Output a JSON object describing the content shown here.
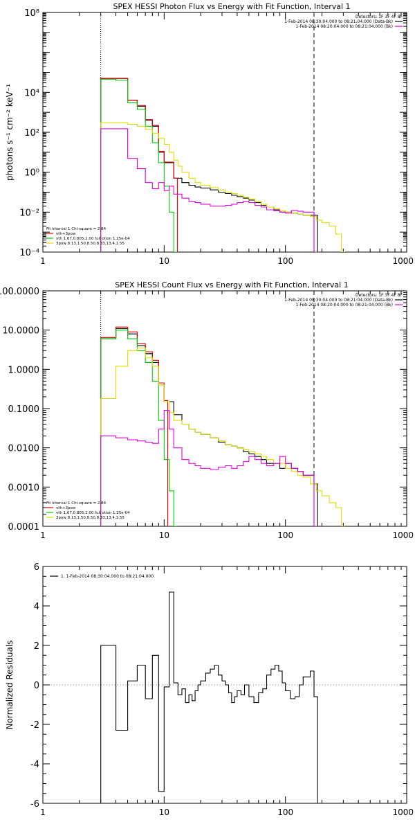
{
  "chart_data": [
    {
      "type": "line",
      "title": "SPEX HESSI Photon Flux vs Energy with Fit Function, Interval 1",
      "ylabel": "photons s⁻¹ cm⁻² keV⁻¹",
      "x_scale": "log",
      "y_scale": "log",
      "xlim": [
        1,
        1000
      ],
      "ylim": [
        0.0001,
        100000000
      ],
      "x_ticks": [
        {
          "value": 1,
          "label": "1"
        },
        {
          "value": 10,
          "label": "10"
        },
        {
          "value": 100,
          "label": "100"
        },
        {
          "value": 1000,
          "label": "1000"
        }
      ],
      "y_ticks": [
        {
          "value": 0.0001,
          "label": "10⁻⁴"
        },
        {
          "value": 0.01,
          "label": "10⁻²"
        },
        {
          "value": 1,
          "label": "10⁰"
        },
        {
          "value": 100,
          "label": "10²"
        },
        {
          "value": 10000,
          "label": "10⁴"
        },
        {
          "value": 100000000,
          "label": "10⁸"
        }
      ],
      "legend_top": {
        "header": "Detectors: 1F 3F 4F 8F",
        "entries": [
          {
            "label": "1-Feb-2014 08:30:04.000 to 08:21:04.000 (Data-Bk)",
            "color": "#000000"
          },
          {
            "label": "1-Feb-2014 08:20:04.000 to 08:21:04.000 (Bk)",
            "color": "#dd00dd"
          }
        ]
      },
      "legend_bottom": {
        "header": "Fit Interval 1    Chi-square = 2.84",
        "entries": [
          {
            "label": "vth+3pow",
            "color": "#dd0000"
          },
          {
            "label": "vth 1.67,0.805,1.00  full otion 1.25e-04",
            "color": "#00cc00"
          },
          {
            "label": "3pow 8.13,1.50,8.50,8.33,13.4,1.55",
            "color": "#dddd00"
          }
        ]
      },
      "vlines": [
        {
          "x": 3,
          "style": "dotted"
        },
        {
          "x": 172,
          "style": "dashed"
        }
      ],
      "series": [
        {
          "name": "1-Feb-2014 08:30:04.000 to 08:21:04.000 (Data-Bk)",
          "color": "#000000",
          "x": [
            3,
            4,
            5,
            6,
            7,
            8,
            9,
            10,
            12,
            14,
            16,
            18,
            20,
            24,
            28,
            32,
            36,
            40,
            45,
            50,
            56,
            63,
            70,
            80,
            90,
            100,
            112,
            126,
            140,
            172
          ],
          "y": [
            50000,
            50000,
            4000,
            2000,
            400,
            200,
            10,
            3,
            0.5,
            0.3,
            0.22,
            0.18,
            0.16,
            0.13,
            0.1,
            0.085,
            0.07,
            0.06,
            0.05,
            0.04,
            0.03,
            0.022,
            0.018,
            0.013,
            0.01,
            0.01,
            0.009,
            0.008,
            0.007,
            0.007
          ]
        },
        {
          "name": "vth+3pow",
          "color": "#dd0000",
          "x": [
            3,
            4,
            5,
            6,
            7,
            8,
            9,
            10,
            12
          ],
          "y": [
            50000,
            50000,
            4000,
            2200,
            430,
            220,
            11,
            3.2,
            0.5
          ]
        },
        {
          "name": "vth 1.67,0.805,1.00  full otion 1.25e-04",
          "color": "#00cc00",
          "x": [
            3,
            4,
            5,
            6,
            7,
            8,
            9,
            10,
            11,
            12
          ],
          "y": [
            45000,
            40000,
            3000,
            1400,
            200,
            30,
            3,
            0.2,
            0.01,
            0.0001
          ]
        },
        {
          "name": "3pow 8.13,1.50,8.50,8.33,13.4,1.55",
          "color": "#dddd00",
          "x": [
            3,
            4,
            5,
            6,
            7,
            8,
            9,
            10,
            11,
            12,
            13,
            14,
            16,
            18,
            20,
            24,
            28,
            32,
            36,
            40,
            45,
            50,
            56,
            63,
            70,
            80,
            90,
            100,
            112,
            126,
            140,
            160,
            180,
            200,
            230,
            260,
            290
          ],
          "y": [
            300,
            300,
            250,
            200,
            140,
            90,
            50,
            25,
            10,
            4,
            2,
            1,
            0.5,
            0.3,
            0.22,
            0.17,
            0.13,
            0.1,
            0.085,
            0.07,
            0.055,
            0.045,
            0.035,
            0.025,
            0.018,
            0.015,
            0.012,
            0.01,
            0.009,
            0.008,
            0.007,
            0.006,
            0.004,
            0.003,
            0.002,
            0.0008,
            0.0001
          ]
        },
        {
          "name": "1-Feb-2014 08:20:04.000 to 08:21:04.000 (Bk)",
          "color": "#dd00dd",
          "x": [
            3,
            4,
            5,
            6,
            7,
            8,
            9,
            10,
            11,
            12,
            14,
            16,
            18,
            20,
            24,
            28,
            32,
            36,
            40,
            45,
            50,
            56,
            63,
            70,
            80,
            90,
            100,
            112,
            126,
            140,
            172
          ],
          "y": [
            150,
            150,
            5,
            1.5,
            0.3,
            0.15,
            0.3,
            0.12,
            0.2,
            0.08,
            0.05,
            0.035,
            0.03,
            0.025,
            0.02,
            0.02,
            0.022,
            0.025,
            0.03,
            0.035,
            0.03,
            0.022,
            0.018,
            0.013,
            0.012,
            0.01,
            0.009,
            0.012,
            0.011,
            0.01,
            0.0001
          ]
        }
      ]
    },
    {
      "type": "line",
      "title": "SPEX HESSI Count Flux vs Energy with Fit Function, Interval 1",
      "ylabel": "",
      "x_scale": "log",
      "y_scale": "log",
      "xlim": [
        1,
        1000
      ],
      "ylim": [
        0.0001,
        100
      ],
      "x_ticks": [
        {
          "value": 1,
          "label": "1"
        },
        {
          "value": 10,
          "label": "10"
        },
        {
          "value": 100,
          "label": "100"
        },
        {
          "value": 1000,
          "label": "1000"
        }
      ],
      "y_ticks": [
        {
          "value": 0.0001,
          "label": "0.0001"
        },
        {
          "value": 0.001,
          "label": "0.0010"
        },
        {
          "value": 0.01,
          "label": "0.0100"
        },
        {
          "value": 0.1,
          "label": "0.1000"
        },
        {
          "value": 1,
          "label": "1.0000"
        },
        {
          "value": 10,
          "label": "10.0000"
        },
        {
          "value": 100,
          "label": "100.0000"
        }
      ],
      "legend_top": {
        "header": "Detectors: 1F 3F 4F 8F",
        "entries": [
          {
            "label": "1-Feb-2014 08:30:04.000 to 08:21:04.000 (Data-Bk)",
            "color": "#000000"
          },
          {
            "label": "1-Feb-2014 08:20:04.000 to 08:21:04.000 (Bk)",
            "color": "#dd00dd"
          }
        ]
      },
      "legend_bottom": {
        "header": "Fit Interval 1    Chi-square = 2.84",
        "entries": [
          {
            "label": "vth+3pow",
            "color": "#dd0000"
          },
          {
            "label": "vth 1.67,0.805,1.00  full otion 1.25e-04",
            "color": "#00cc00"
          },
          {
            "label": "3pow 8.13,1.50,8.50,8.33,13.4,1.55",
            "color": "#dddd00"
          }
        ]
      },
      "vlines": [
        {
          "x": 3,
          "style": "dotted"
        },
        {
          "x": 172,
          "style": "dashed"
        }
      ],
      "series": [
        {
          "name": "1-Feb-2014 08:30:04.000 to 08:21:04.000 (Data-Bk)",
          "color": "#000000",
          "x": [
            3,
            4,
            5,
            6,
            7,
            8,
            9,
            10,
            12,
            14,
            16,
            18,
            20,
            24,
            28,
            32,
            36,
            40,
            45,
            50,
            56,
            63,
            70,
            80,
            90,
            100,
            112,
            126,
            140,
            172
          ],
          "y": [
            6,
            11,
            8,
            4,
            2.5,
            1.5,
            0.4,
            0.15,
            0.07,
            0.04,
            0.03,
            0.025,
            0.022,
            0.018,
            0.014,
            0.012,
            0.011,
            0.01,
            0.008,
            0.007,
            0.006,
            0.005,
            0.004,
            0.004,
            0.003,
            0.004,
            0.003,
            0.0025,
            0.002,
            0.0012
          ]
        },
        {
          "name": "vth+3pow",
          "color": "#dd0000",
          "x": [
            3,
            4,
            5,
            6,
            7,
            8,
            9,
            10
          ],
          "y": [
            6.5,
            12,
            9,
            4.5,
            2.8,
            1.7,
            0.45,
            0.16
          ]
        },
        {
          "name": "vth 1.67,0.805,1.00  full otion 1.25e-04",
          "color": "#00cc00",
          "x": [
            3,
            4,
            5,
            6,
            7,
            8,
            9,
            10,
            11,
            12
          ],
          "y": [
            6,
            10,
            6,
            3,
            1.5,
            0.5,
            0.05,
            0.005,
            0.0008,
            0.0001
          ]
        },
        {
          "name": "3pow 8.13,1.50,8.50,8.33,13.4,1.55",
          "color": "#dddd00",
          "x": [
            3,
            4,
            5,
            6,
            7,
            8,
            9,
            10,
            11,
            12,
            14,
            16,
            18,
            20,
            24,
            28,
            32,
            36,
            40,
            45,
            50,
            56,
            63,
            70,
            80,
            90,
            100,
            112,
            126,
            140,
            160,
            180,
            200,
            230,
            260,
            290
          ],
          "y": [
            0.18,
            1.2,
            3,
            3.5,
            2,
            1.2,
            0.4,
            0.15,
            0.08,
            0.05,
            0.04,
            0.03,
            0.025,
            0.022,
            0.018,
            0.015,
            0.012,
            0.011,
            0.01,
            0.009,
            0.008,
            0.007,
            0.006,
            0.005,
            0.004,
            0.004,
            0.003,
            0.0025,
            0.002,
            0.0018,
            0.0012,
            0.0008,
            0.0006,
            0.0004,
            0.0003,
            0.0001
          ]
        },
        {
          "name": "1-Feb-2014 08:20:04.000 to 08:21:04.000 (Bk)",
          "color": "#dd00dd",
          "x": [
            3,
            4,
            5,
            6,
            7,
            8,
            9,
            10,
            11,
            12,
            14,
            16,
            18,
            20,
            24,
            28,
            32,
            36,
            40,
            45,
            50,
            56,
            63,
            70,
            80,
            90,
            100,
            112,
            126,
            140,
            172
          ],
          "y": [
            0.02,
            0.018,
            0.016,
            0.015,
            0.014,
            0.013,
            0.03,
            0.09,
            0.03,
            0.01,
            0.005,
            0.004,
            0.0035,
            0.003,
            0.0028,
            0.0032,
            0.0035,
            0.003,
            0.0035,
            0.0045,
            0.006,
            0.005,
            0.004,
            0.0035,
            0.004,
            0.006,
            0.004,
            0.003,
            0.0025,
            0.002,
            0.0001
          ]
        }
      ]
    },
    {
      "type": "line",
      "title": "",
      "ylabel": "Normalized Residuals",
      "x_scale": "log",
      "y_scale": "linear",
      "xlim": [
        1,
        1000
      ],
      "ylim": [
        -6,
        6
      ],
      "x_ticks": [
        {
          "value": 1,
          "label": "1"
        },
        {
          "value": 10,
          "label": "10"
        },
        {
          "value": 100,
          "label": "100"
        },
        {
          "value": 1000,
          "label": "1000"
        }
      ],
      "y_ticks": [
        {
          "value": -6,
          "label": "-6"
        },
        {
          "value": -4,
          "label": "-4"
        },
        {
          "value": -2,
          "label": "-2"
        },
        {
          "value": 0,
          "label": "0"
        },
        {
          "value": 2,
          "label": "2"
        },
        {
          "value": 4,
          "label": "4"
        },
        {
          "value": 6,
          "label": "6"
        }
      ],
      "legend_top": {
        "header": "",
        "entries": [
          {
            "label": "1.  1-Feb-2014 08:30:04.000 to 08:21:04.000",
            "color": "#000000"
          }
        ]
      },
      "series": [
        {
          "name": "1.  1-Feb-2014 08:30:04.000 to 08:21:04.000",
          "color": "#000000",
          "x": [
            3,
            4,
            5,
            6,
            7,
            8,
            9,
            10,
            11,
            12,
            13,
            14,
            15,
            16,
            17,
            18,
            19,
            20,
            22,
            24,
            26,
            28,
            30,
            32,
            34,
            36,
            38,
            40,
            43,
            46,
            50,
            55,
            60,
            65,
            70,
            76,
            82,
            88,
            94,
            100,
            110,
            120,
            130,
            140,
            160,
            172
          ],
          "y": [
            2.0,
            -2.3,
            0.2,
            1.0,
            -0.7,
            1.5,
            -5.4,
            -0.1,
            4.7,
            0.1,
            -0.5,
            -0.2,
            -0.9,
            -0.5,
            -0.8,
            -0.3,
            0.0,
            0.2,
            0.6,
            0.8,
            1.0,
            0.5,
            0.2,
            0.0,
            -0.4,
            -0.9,
            -0.6,
            -0.3,
            -0.5,
            0.0,
            -0.6,
            -0.9,
            -0.4,
            -0.2,
            0.5,
            0.8,
            1.0,
            0.7,
            0.1,
            -0.3,
            -0.7,
            -0.6,
            0.0,
            0.4,
            0.7,
            -0.6
          ]
        }
      ]
    }
  ]
}
